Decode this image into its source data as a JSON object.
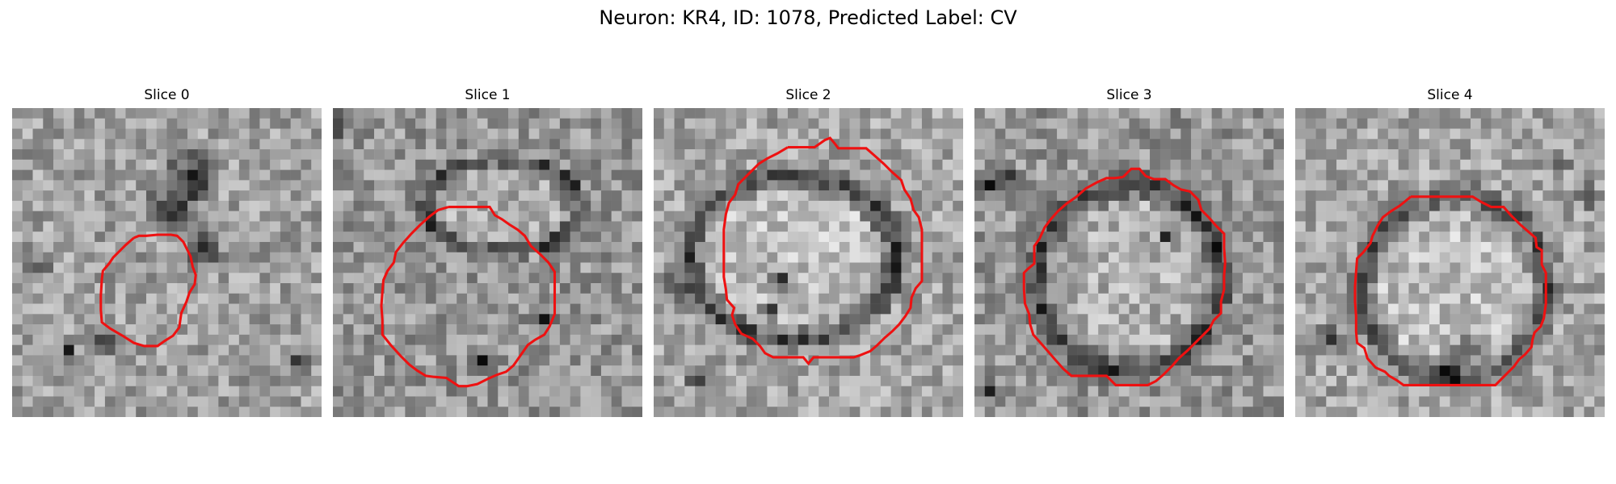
{
  "figure": {
    "title": "Neuron: KR4, ID: 1078, Predicted Label: CV"
  },
  "panels": [
    {
      "title": "Slice 0"
    },
    {
      "title": "Slice 1"
    },
    {
      "title": "Slice 2"
    },
    {
      "title": "Slice 3"
    },
    {
      "title": "Slice 4"
    }
  ],
  "colors": {
    "contour": "#ee1111",
    "background": "#ffffff"
  }
}
